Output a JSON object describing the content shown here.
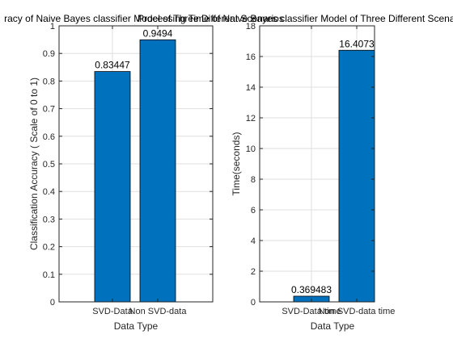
{
  "chart_data": [
    {
      "type": "bar",
      "title": "racy of Naive Bayes classifier Model of Three Different Scenarios",
      "xlabel": "Data Type",
      "ylabel": "Classification Accuracy ( Scale of 0 to 1)",
      "categories": [
        "SVD-Data",
        "Non SVD-data"
      ],
      "values": [
        0.83447,
        0.9494
      ],
      "data_labels": [
        "0.83447",
        "0.9494"
      ],
      "ylim": [
        0,
        1
      ],
      "yticks": [
        0,
        0.1,
        0.2,
        0.3,
        0.4,
        0.5,
        0.6,
        0.7,
        0.8,
        0.9,
        1
      ],
      "ytick_labels": [
        "0",
        "0.1",
        "0.2",
        "0.3",
        "0.4",
        "0.5",
        "0.6",
        "0.7",
        "0.8",
        "0.9",
        "1"
      ],
      "grid": true,
      "bar_color": "#0072BD"
    },
    {
      "type": "bar",
      "title": "Processing Time of Naive Bayes classifier Model of Three Different Scenarios",
      "xlabel": "Data Type",
      "ylabel": "Time(seconds)",
      "categories": [
        "SVD-Data time",
        "Non SVD-data time"
      ],
      "values": [
        0.369483,
        16.4073
      ],
      "data_labels": [
        "0.369483",
        "16.4073"
      ],
      "ylim": [
        0,
        18
      ],
      "yticks": [
        0,
        2,
        4,
        6,
        8,
        10,
        12,
        14,
        16,
        18
      ],
      "ytick_labels": [
        "0",
        "2",
        "4",
        "6",
        "8",
        "10",
        "12",
        "14",
        "16",
        "18"
      ],
      "grid": true,
      "bar_color": "#0072BD"
    }
  ]
}
